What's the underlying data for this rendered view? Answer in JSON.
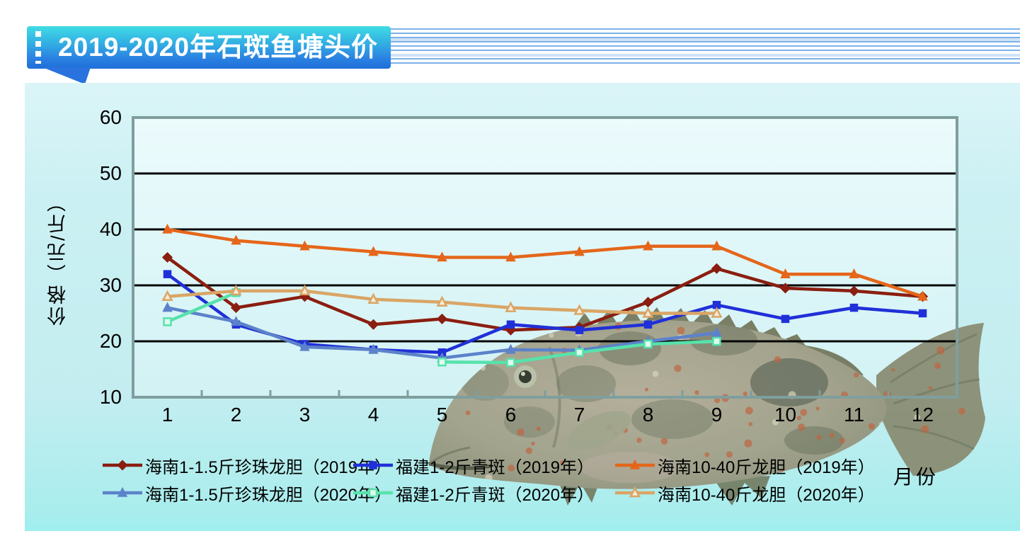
{
  "header": {
    "title": "2019-2020年石斑鱼塘头价"
  },
  "chart_data": {
    "type": "line",
    "title": "2019-2020年石斑鱼塘头价",
    "xlabel": "月份",
    "ylabel": "价格（元/斤）",
    "x": [
      1,
      2,
      3,
      4,
      5,
      6,
      7,
      8,
      9,
      10,
      11,
      12
    ],
    "ylim": [
      10,
      60
    ],
    "yticks": [
      60,
      50,
      40,
      30,
      20,
      10
    ],
    "gridlines_at": [
      20,
      30,
      40,
      50
    ],
    "grid": true,
    "legend_position": "bottom",
    "series": [
      {
        "name": "海南1-1.5斤珍珠龙胆（2019年）",
        "color": "#8a1e10",
        "marker": "diamond",
        "values": [
          35,
          26,
          28,
          23,
          24,
          22,
          22.5,
          27,
          33,
          29.5,
          29,
          28
        ]
      },
      {
        "name": "福建1-2斤青斑（2019年）",
        "color": "#2030d8",
        "marker": "square",
        "values": [
          32,
          23,
          19.5,
          18.5,
          18,
          23,
          22,
          23,
          26.5,
          24,
          26,
          25
        ]
      },
      {
        "name": "海南10-40斤龙胆（2019年）",
        "color": "#e5661a",
        "marker": "triangle",
        "values": [
          40,
          38,
          37,
          36,
          35,
          35,
          36,
          37,
          37,
          32,
          32,
          28
        ]
      },
      {
        "name": "海南1-1.5斤珍珠龙胆（2020年）",
        "color": "#5c82ca",
        "marker": "triangle",
        "values": [
          26,
          23.5,
          19,
          18.5,
          17,
          18.5,
          18.4,
          20,
          21.5,
          null,
          null,
          null
        ]
      },
      {
        "name": "福建1-2斤青斑（2020年）",
        "color": "#57e2ab",
        "marker": "square-open",
        "values": [
          23.5,
          28.7,
          null,
          null,
          16.3,
          16.2,
          18,
          19.5,
          20,
          null,
          null,
          null
        ]
      },
      {
        "name": "海南10-40斤龙胆（2020年）",
        "color": "#d9a566",
        "marker": "triangle-open",
        "values": [
          28,
          29,
          29,
          27.5,
          27,
          26,
          25.5,
          25,
          25,
          null,
          null,
          null
        ]
      }
    ]
  },
  "theme": {
    "banner_gradient_top": "#41dce4",
    "banner_gradient_bottom": "#1f6fd8",
    "stripe_color": "#7db1ea",
    "panel_color": "#c6eef1",
    "plot_background": "#e2f8fa",
    "gridline_color": "#050505",
    "axis_color": "#7f9e9e",
    "text_color": "#000000"
  }
}
